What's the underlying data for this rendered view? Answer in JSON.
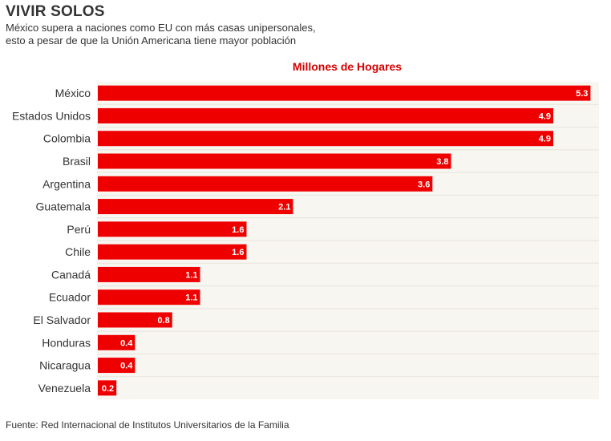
{
  "header": {
    "title": "VIVIR SOLOS",
    "subtitle_lines": [
      "México supera a naciones como EU con más casas unipersonales,",
      "esto a pesar de que la Unión Americana tiene mayor población"
    ]
  },
  "footer": {
    "source": "Fuente: Red Internacional de Institutos Universitarios de la Familia"
  },
  "colors": {
    "bar": "#ee0000",
    "series_label": "#d40000",
    "plot_background": "#f8f6f1",
    "gridline": "#e6e3dc",
    "text": "#333333"
  },
  "chart_data": {
    "type": "bar",
    "orientation": "horizontal",
    "series_name": "Millones de Hogares",
    "categories": [
      "México",
      "Estados Unidos",
      "Colombia",
      "Brasil",
      "Argentina",
      "Guatemala",
      "Perú",
      "Chile",
      "Canadá",
      "Ecuador",
      "El Salvador",
      "Honduras",
      "Nicaragua",
      "Venezuela"
    ],
    "values": [
      5.3,
      4.9,
      4.9,
      3.8,
      3.6,
      2.1,
      1.6,
      1.6,
      1.1,
      1.1,
      0.8,
      0.4,
      0.4,
      0.2
    ],
    "data_labels": [
      "5.3",
      "4.9",
      "4.9",
      "3.8",
      "3.6",
      "2.1",
      "1.6",
      "1.6",
      "1.1",
      "1.1",
      "0.8",
      "0.4",
      "0.4",
      "0.2"
    ],
    "xlim": [
      0,
      5.4
    ],
    "grid": true,
    "legend": "none"
  }
}
